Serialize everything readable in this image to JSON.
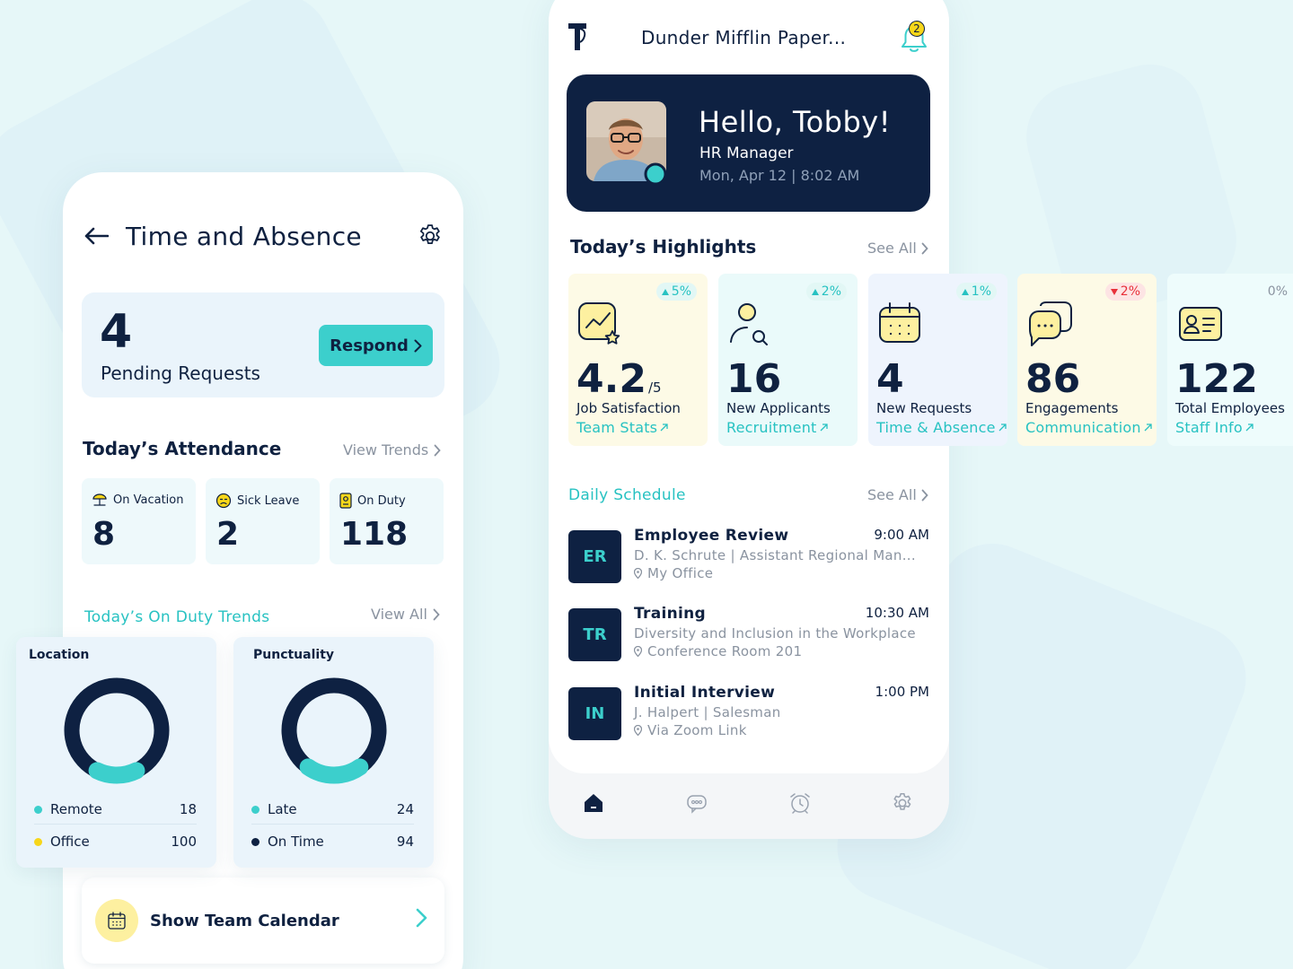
{
  "left_screen": {
    "title": "Time and Absence",
    "pending": {
      "count": "4",
      "label": "Pending Requests",
      "respond_label": "Respond"
    },
    "attendance": {
      "title": "Today’s Attendance",
      "view_trends": "View Trends",
      "cards": [
        {
          "label": "On Vacation",
          "value": "8",
          "icon": "beach-umbrella-icon"
        },
        {
          "label": "Sick Leave",
          "value": "2",
          "icon": "sick-face-icon"
        },
        {
          "label": "On Duty",
          "value": "118",
          "icon": "badge-icon"
        }
      ]
    },
    "trends": {
      "title": "Today’s On Duty Trends",
      "view_all": "View All",
      "location": {
        "title": "Location",
        "items": [
          {
            "label": "Remote",
            "value": "18",
            "color": "#3ccfcc"
          },
          {
            "label": "Office",
            "value": "100",
            "color": "#f7d61a"
          }
        ]
      },
      "punctuality": {
        "title": "Punctuality",
        "items": [
          {
            "label": "Late",
            "value": "24",
            "color": "#3ccfcc"
          },
          {
            "label": "On Time",
            "value": "94",
            "color": "#0e2142"
          }
        ]
      }
    },
    "calendar_label": "Show Team Calendar"
  },
  "right_screen": {
    "company": "Dunder Mifflin Paper...",
    "notifications": "2",
    "user": {
      "greeting": "Hello, Tobby!",
      "role": "HR Manager",
      "datetime": "Mon,  Apr 12 | 8:02 AM"
    },
    "highlights": {
      "title": "Today’s Highlights",
      "see_all": "See All",
      "cards": [
        {
          "value": "4.2",
          "suffix": "/5",
          "label": "Job Satisfaction",
          "link": "Team Stats",
          "change": "5%",
          "trend": "up",
          "icon": "chart-star-icon"
        },
        {
          "value": "16",
          "suffix": "",
          "label": "New Applicants",
          "link": "Recruitment",
          "change": "2%",
          "trend": "up",
          "icon": "person-search-icon"
        },
        {
          "value": "4",
          "suffix": "",
          "label": "New Requests",
          "link": "Time & Absence",
          "change": "1%",
          "trend": "up",
          "icon": "calendar-icon"
        },
        {
          "value": "86",
          "suffix": "",
          "label": "Engagements",
          "link": "Communication",
          "change": "2%",
          "trend": "down",
          "icon": "chat-bubbles-icon"
        },
        {
          "value": "122",
          "suffix": "",
          "label": "Total Employees",
          "link": "Staff Info",
          "change": "0%",
          "trend": "flat",
          "icon": "id-card-icon"
        }
      ]
    },
    "schedule": {
      "title": "Daily Schedule",
      "see_all": "See All",
      "items": [
        {
          "initials": "ER",
          "title": "Employee Review",
          "time": "9:00 AM",
          "desc": "D. K. Schrute | Assistant Regional Man...",
          "location": "My Office"
        },
        {
          "initials": "TR",
          "title": "Training",
          "time": "10:30 AM",
          "desc": "Diversity and Inclusion in the Workplace",
          "location": "Conference Room 201"
        },
        {
          "initials": "IN",
          "title": "Initial Interview",
          "time": "1:00 PM",
          "desc": "J. Halpert | Salesman",
          "location": "Via Zoom Link"
        }
      ]
    },
    "tabs": [
      "home-icon",
      "chat-icon",
      "alarm-clock-icon",
      "settings-icon"
    ]
  },
  "colors": {
    "navy": "#0e2142",
    "teal": "#3ccfcc",
    "yellow": "#f7d61a",
    "red": "#e8303a"
  }
}
